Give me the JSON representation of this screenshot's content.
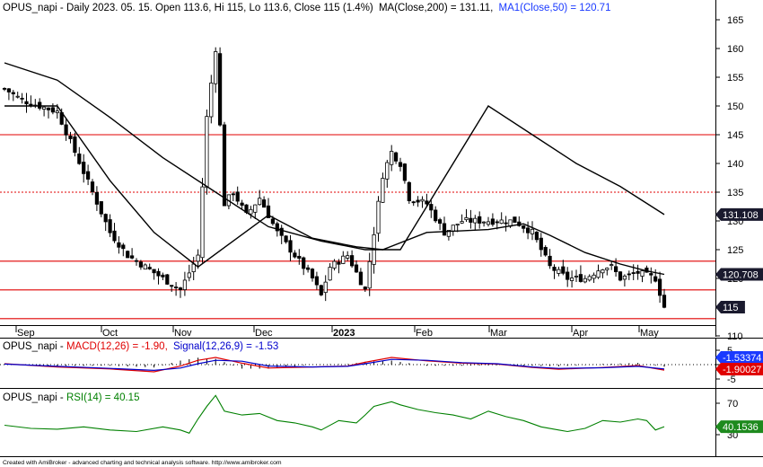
{
  "main_panel": {
    "title_prefix": "OPUS_napi - Daily 2023. 05. 15. Open 113.6, Hi 115, Lo 113.6, Close 115 (1.4%)",
    "ma200_label": "MA(Close,200) = 131.11,",
    "ma50_label": "MA1(Close,50) = 120.71",
    "price_ticks": [
      "165",
      "160",
      "155",
      "150",
      "145",
      "140",
      "135",
      "130",
      "125",
      "120",
      "115",
      "110"
    ],
    "date_labels": [
      "Sep",
      "Oct",
      "Nov",
      "Dec",
      "2023",
      "Feb",
      "Mar",
      "Apr",
      "May"
    ],
    "badges": {
      "ma200": "131.108",
      "ma50": "120.708",
      "close": "115"
    }
  },
  "macd_panel": {
    "title_prefix": "OPUS_napi - ",
    "macd_label": "MACD(12,26) = -1.90,",
    "signal_label": "Signal(12,26,9) = -1.53",
    "ticks": [
      "5",
      "0",
      "-5"
    ],
    "badges": {
      "signal": "-1.53374",
      "macd": "-1.90027"
    }
  },
  "rsi_panel": {
    "title_prefix": "OPUS_napi - ",
    "rsi_label": "RSI(14) = 40.15",
    "ticks": [
      "70",
      "30"
    ],
    "badge": "40.1536"
  },
  "footer": "Created with AmiBroker - advanced charting and technical analysis software. http://www.amibroker.com",
  "colors": {
    "ma200": "#000000",
    "ma50": "#000000",
    "hline": "#e00000",
    "macd": "#e00000",
    "signal": "#0000cc",
    "rsi": "#008000",
    "candle": "#000000",
    "badge_dark": "#1a1a2e",
    "badge_blue": "#1a3aff",
    "badge_red": "#e00000",
    "badge_green": "#1e8a1e"
  },
  "chart_data": [
    {
      "type": "candlestick",
      "series_name": "OPUS_napi",
      "x_labels": [
        "Sep",
        "Oct",
        "Nov",
        "Dec",
        "2023",
        "Feb",
        "Mar",
        "Apr",
        "May"
      ],
      "ylim": [
        107,
        168
      ],
      "horizontal_lines": [
        {
          "value": 145,
          "style": "solid"
        },
        {
          "value": 135,
          "style": "dotted"
        },
        {
          "value": 123,
          "style": "solid"
        },
        {
          "value": 118,
          "style": "solid"
        },
        {
          "value": 113,
          "style": "solid"
        }
      ],
      "close_points": [
        [
          0,
          153
        ],
        [
          4,
          151
        ],
        [
          8,
          150
        ],
        [
          12,
          149
        ],
        [
          16,
          142
        ],
        [
          20,
          135
        ],
        [
          24,
          128
        ],
        [
          28,
          124
        ],
        [
          32,
          122
        ],
        [
          36,
          120
        ],
        [
          40,
          118
        ],
        [
          44,
          124
        ],
        [
          46,
          148
        ],
        [
          48,
          160
        ],
        [
          50,
          133
        ],
        [
          52,
          135
        ],
        [
          55,
          131
        ],
        [
          58,
          134
        ],
        [
          62,
          128
        ],
        [
          66,
          124
        ],
        [
          70,
          120
        ],
        [
          72,
          117
        ],
        [
          74,
          122
        ],
        [
          78,
          124
        ],
        [
          82,
          118
        ],
        [
          84,
          128
        ],
        [
          86,
          138
        ],
        [
          88,
          142
        ],
        [
          90,
          140
        ],
        [
          92,
          134
        ],
        [
          96,
          133
        ],
        [
          100,
          128
        ],
        [
          104,
          130
        ],
        [
          108,
          130
        ],
        [
          112,
          130
        ],
        [
          116,
          130
        ],
        [
          120,
          128
        ],
        [
          124,
          122
        ],
        [
          128,
          120
        ],
        [
          132,
          120
        ],
        [
          136,
          122
        ],
        [
          138,
          122
        ],
        [
          140,
          120
        ],
        [
          144,
          121
        ],
        [
          148,
          120
        ],
        [
          150,
          115
        ]
      ],
      "ma200_points": [
        [
          0,
          157.5
        ],
        [
          12,
          154.5
        ],
        [
          24,
          148
        ],
        [
          36,
          141
        ],
        [
          48,
          135
        ],
        [
          60,
          129
        ],
        [
          72,
          126.5
        ],
        [
          82,
          125
        ],
        [
          90,
          125
        ],
        [
          110,
          150
        ],
        [
          120,
          145
        ],
        [
          130,
          140
        ],
        [
          140,
          136
        ],
        [
          150,
          131.11
        ]
      ],
      "ma50_points": [
        [
          0,
          150
        ],
        [
          12,
          150
        ],
        [
          24,
          137
        ],
        [
          34,
          128
        ],
        [
          44,
          122
        ],
        [
          60,
          131
        ],
        [
          70,
          127
        ],
        [
          80,
          125.5
        ],
        [
          86,
          125
        ],
        [
          96,
          128
        ],
        [
          110,
          128.5
        ],
        [
          118,
          129.5
        ],
        [
          124,
          127.5
        ],
        [
          132,
          124.5
        ],
        [
          140,
          122.5
        ],
        [
          146,
          121.3
        ],
        [
          150,
          120.71
        ]
      ]
    },
    {
      "type": "line",
      "series": [
        {
          "name": "MACD(12,26)",
          "points": [
            [
              0,
              0.3
            ],
            [
              12,
              -0.8
            ],
            [
              24,
              -1.5
            ],
            [
              34,
              -2.5
            ],
            [
              40,
              -0.5
            ],
            [
              44,
              1.5
            ],
            [
              48,
              2.5
            ],
            [
              54,
              0.5
            ],
            [
              60,
              -1.2
            ],
            [
              70,
              -0.8
            ],
            [
              78,
              -0.5
            ],
            [
              82,
              0.8
            ],
            [
              88,
              2.5
            ],
            [
              96,
              1.3
            ],
            [
              104,
              0.5
            ],
            [
              112,
              0.2
            ],
            [
              120,
              -1.0
            ],
            [
              126,
              -1.6
            ],
            [
              136,
              -1.0
            ],
            [
              144,
              -0.3
            ],
            [
              150,
              -1.9
            ]
          ]
        },
        {
          "name": "Signal(12,26,9)",
          "points": [
            [
              0,
              0.2
            ],
            [
              12,
              -0.6
            ],
            [
              24,
              -1.3
            ],
            [
              34,
              -2.0
            ],
            [
              40,
              -1.2
            ],
            [
              44,
              0.3
            ],
            [
              48,
              1.5
            ],
            [
              54,
              1.2
            ],
            [
              60,
              -0.5
            ],
            [
              70,
              -0.8
            ],
            [
              78,
              -0.6
            ],
            [
              82,
              0.3
            ],
            [
              88,
              1.8
            ],
            [
              96,
              1.5
            ],
            [
              104,
              0.7
            ],
            [
              112,
              0.3
            ],
            [
              120,
              -0.8
            ],
            [
              126,
              -1.3
            ],
            [
              136,
              -1.1
            ],
            [
              144,
              -0.6
            ],
            [
              150,
              -1.53
            ]
          ]
        }
      ],
      "ylim": [
        -7,
        7
      ],
      "yticks": [
        5,
        0,
        -5
      ]
    },
    {
      "type": "line",
      "series": [
        {
          "name": "RSI(14)",
          "points": [
            [
              0,
              42
            ],
            [
              6,
              38
            ],
            [
              12,
              37
            ],
            [
              18,
              40
            ],
            [
              24,
              36
            ],
            [
              30,
              34
            ],
            [
              36,
              40
            ],
            [
              40,
              36
            ],
            [
              42,
              32
            ],
            [
              44,
              50
            ],
            [
              46,
              66
            ],
            [
              48,
              80
            ],
            [
              50,
              60
            ],
            [
              54,
              55
            ],
            [
              58,
              57
            ],
            [
              62,
              48
            ],
            [
              66,
              45
            ],
            [
              70,
              40
            ],
            [
              72,
              36
            ],
            [
              76,
              48
            ],
            [
              80,
              45
            ],
            [
              82,
              55
            ],
            [
              84,
              66
            ],
            [
              88,
              72
            ],
            [
              90,
              68
            ],
            [
              94,
              62
            ],
            [
              98,
              58
            ],
            [
              102,
              55
            ],
            [
              106,
              50
            ],
            [
              110,
              60
            ],
            [
              114,
              53
            ],
            [
              118,
              48
            ],
            [
              122,
              40
            ],
            [
              126,
              36
            ],
            [
              128,
              34
            ],
            [
              132,
              38
            ],
            [
              136,
              48
            ],
            [
              140,
              46
            ],
            [
              144,
              50
            ],
            [
              146,
              48
            ],
            [
              148,
              36
            ],
            [
              150,
              40.15
            ]
          ]
        }
      ],
      "ylim": [
        20,
        85
      ],
      "yticks": [
        70,
        30
      ]
    }
  ]
}
